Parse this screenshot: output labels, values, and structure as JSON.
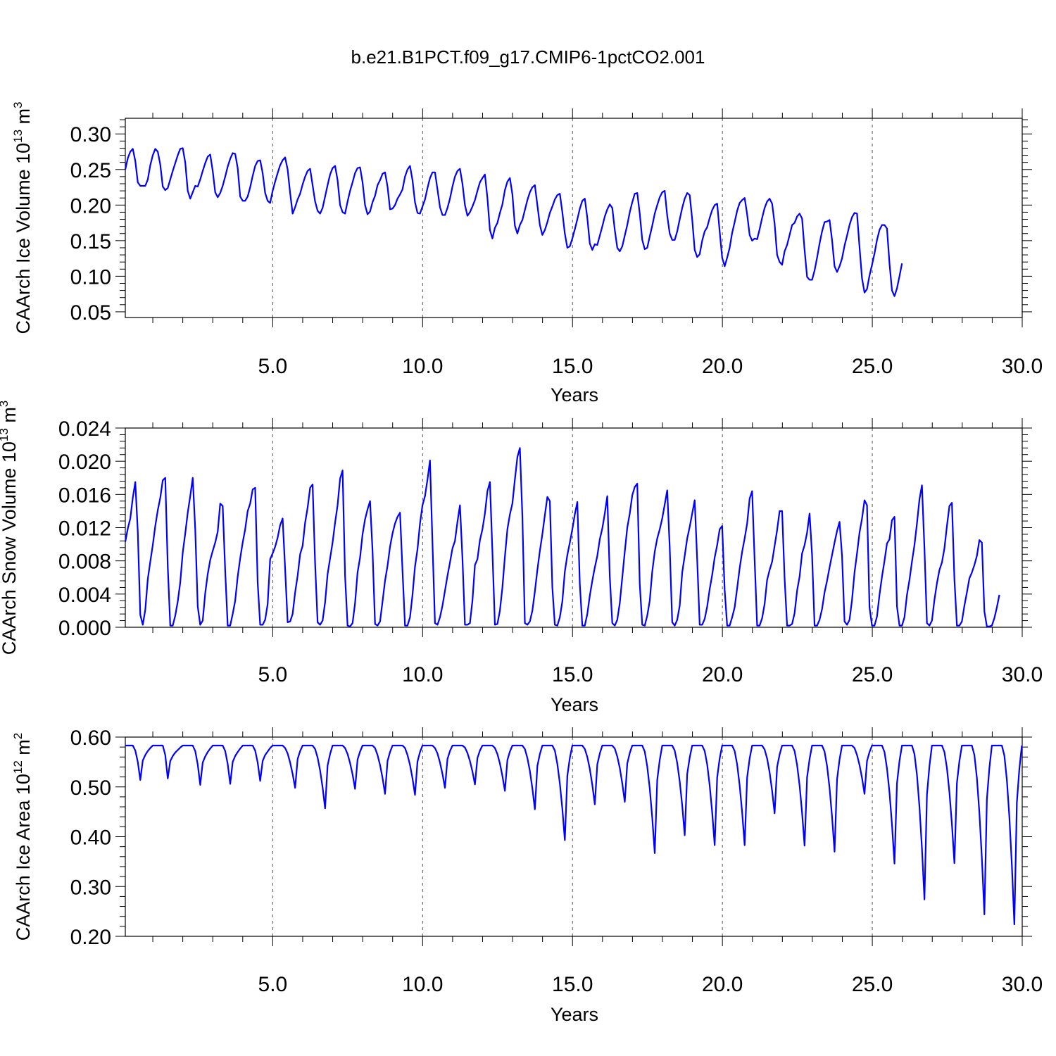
{
  "title": "b.e21.B1PCT.f09_g17.CMIP6-1pctCO2.001",
  "colors": {
    "line": "#0000ff",
    "axis": "#000000",
    "grid": "#555555"
  },
  "chart_data": [
    {
      "type": "line",
      "xlabel": "Years",
      "ylabel": {
        "prefix": "CAArch Ice Volume 10",
        "exp": "13",
        "unit_base": "m",
        "unit_exp": "3"
      },
      "xlim": [
        0.0833,
        30.0
      ],
      "ylim": [
        0.042,
        0.322
      ],
      "xticks": [
        5.0,
        10.0,
        15.0,
        20.0,
        25.0,
        30.0
      ],
      "xtick_labels": [
        "5.0",
        "10.0",
        "15.0",
        "20.0",
        "25.0",
        "30.0"
      ],
      "yticks": [
        0.05,
        0.1,
        0.15,
        0.2,
        0.25,
        0.3
      ],
      "ytick_labels": [
        "0.05",
        "0.10",
        "0.15",
        "0.20",
        "0.25",
        "0.30"
      ],
      "grid": "vertical dashed at major x ticks",
      "x_start": 0.0833,
      "x_step": 0.0833,
      "series": [
        {
          "values": [
            0.25,
            0.266,
            0.275,
            0.279,
            0.262,
            0.232,
            0.227,
            0.227,
            0.227,
            0.236,
            0.256,
            0.27,
            0.279,
            0.275,
            0.257,
            0.226,
            0.221,
            0.224,
            0.236,
            0.248,
            0.259,
            0.27,
            0.279,
            0.28,
            0.26,
            0.22,
            0.209,
            0.218,
            0.227,
            0.226,
            0.236,
            0.248,
            0.259,
            0.268,
            0.271,
            0.248,
            0.218,
            0.211,
            0.217,
            0.227,
            0.24,
            0.254,
            0.265,
            0.273,
            0.272,
            0.252,
            0.212,
            0.206,
            0.206,
            0.212,
            0.225,
            0.241,
            0.255,
            0.262,
            0.263,
            0.245,
            0.217,
            0.206,
            0.203,
            0.22,
            0.233,
            0.245,
            0.256,
            0.263,
            0.267,
            0.25,
            0.217,
            0.188,
            0.197,
            0.208,
            0.216,
            0.229,
            0.24,
            0.248,
            0.251,
            0.228,
            0.205,
            0.192,
            0.188,
            0.196,
            0.212,
            0.228,
            0.243,
            0.252,
            0.255,
            0.235,
            0.2,
            0.19,
            0.188,
            0.205,
            0.22,
            0.232,
            0.245,
            0.252,
            0.253,
            0.232,
            0.2,
            0.187,
            0.191,
            0.204,
            0.213,
            0.228,
            0.235,
            0.244,
            0.246,
            0.226,
            0.194,
            0.195,
            0.2,
            0.209,
            0.215,
            0.222,
            0.24,
            0.25,
            0.255,
            0.235,
            0.204,
            0.189,
            0.188,
            0.198,
            0.208,
            0.224,
            0.238,
            0.246,
            0.246,
            0.222,
            0.197,
            0.186,
            0.186,
            0.196,
            0.209,
            0.226,
            0.24,
            0.248,
            0.251,
            0.23,
            0.2,
            0.185,
            0.19,
            0.198,
            0.207,
            0.22,
            0.232,
            0.238,
            0.243,
            0.21,
            0.165,
            0.153,
            0.168,
            0.175,
            0.189,
            0.201,
            0.221,
            0.233,
            0.238,
            0.215,
            0.171,
            0.16,
            0.172,
            0.179,
            0.193,
            0.207,
            0.218,
            0.225,
            0.228,
            0.2,
            0.172,
            0.158,
            0.165,
            0.176,
            0.189,
            0.198,
            0.208,
            0.214,
            0.216,
            0.19,
            0.16,
            0.14,
            0.142,
            0.153,
            0.166,
            0.18,
            0.195,
            0.206,
            0.209,
            0.182,
            0.146,
            0.137,
            0.145,
            0.144,
            0.157,
            0.17,
            0.184,
            0.194,
            0.201,
            0.196,
            0.165,
            0.14,
            0.135,
            0.142,
            0.157,
            0.172,
            0.19,
            0.204,
            0.216,
            0.217,
            0.188,
            0.151,
            0.138,
            0.14,
            0.156,
            0.171,
            0.188,
            0.2,
            0.211,
            0.218,
            0.22,
            0.185,
            0.16,
            0.151,
            0.151,
            0.163,
            0.18,
            0.196,
            0.209,
            0.217,
            0.214,
            0.18,
            0.137,
            0.127,
            0.131,
            0.15,
            0.163,
            0.169,
            0.182,
            0.193,
            0.2,
            0.202,
            0.163,
            0.126,
            0.114,
            0.126,
            0.14,
            0.161,
            0.176,
            0.192,
            0.203,
            0.207,
            0.21,
            0.187,
            0.158,
            0.15,
            0.153,
            0.152,
            0.166,
            0.182,
            0.196,
            0.205,
            0.209,
            0.202,
            0.174,
            0.13,
            0.12,
            0.116,
            0.135,
            0.144,
            0.158,
            0.172,
            0.175,
            0.184,
            0.188,
            0.181,
            0.137,
            0.099,
            0.095,
            0.095,
            0.108,
            0.126,
            0.146,
            0.163,
            0.176,
            0.177,
            0.179,
            0.151,
            0.114,
            0.106,
            0.114,
            0.125,
            0.143,
            0.157,
            0.172,
            0.183,
            0.189,
            0.188,
            0.141,
            0.097,
            0.077,
            0.082,
            0.101,
            0.116,
            0.132,
            0.151,
            0.165,
            0.172,
            0.172,
            0.167,
            0.118,
            0.08,
            0.072,
            0.083,
            0.1,
            0.118
          ]
        }
      ]
    },
    {
      "type": "line",
      "xlabel": "Years",
      "ylabel": {
        "prefix": "CAArch Snow Volume 10",
        "exp": "13",
        "unit_base": "m",
        "unit_exp": "3"
      },
      "xlim": [
        0.0833,
        30.0
      ],
      "ylim": [
        0.0,
        0.024
      ],
      "xticks": [
        5.0,
        10.0,
        15.0,
        20.0,
        25.0,
        30.0
      ],
      "xtick_labels": [
        "5.0",
        "10.0",
        "15.0",
        "20.0",
        "25.0",
        "30.0"
      ],
      "yticks": [
        0.0,
        0.004,
        0.008,
        0.012,
        0.016,
        0.02,
        0.024
      ],
      "ytick_labels": [
        "0.000",
        "0.004",
        "0.008",
        "0.012",
        "0.016",
        "0.020",
        "0.024"
      ],
      "grid": "vertical dashed at major x ticks",
      "x_start": 0.0833,
      "x_step": 0.0833,
      "series": [
        {
          "values": [
            0.0103,
            0.0119,
            0.0131,
            0.0156,
            0.0175,
            0.0115,
            0.0015,
            0.0003,
            0.0021,
            0.0058,
            0.0079,
            0.0099,
            0.0122,
            0.0141,
            0.0156,
            0.0177,
            0.018,
            0.0073,
            0.0002,
            0.0002,
            0.0014,
            0.0031,
            0.0054,
            0.009,
            0.0113,
            0.0138,
            0.0158,
            0.018,
            0.0118,
            0.0025,
            0.0003,
            0.0008,
            0.0041,
            0.0064,
            0.0081,
            0.0092,
            0.0102,
            0.0115,
            0.0149,
            0.0146,
            0.0068,
            0.0002,
            0.0002,
            0.0016,
            0.0032,
            0.0061,
            0.0083,
            0.0102,
            0.0118,
            0.014,
            0.0149,
            0.0166,
            0.0168,
            0.0054,
            0.0003,
            0.0003,
            0.0009,
            0.0028,
            0.0082,
            0.0089,
            0.0097,
            0.0108,
            0.0123,
            0.0131,
            0.007,
            0.0006,
            0.0007,
            0.0016,
            0.0042,
            0.0062,
            0.0088,
            0.0098,
            0.0126,
            0.0144,
            0.0168,
            0.0172,
            0.0077,
            0.0006,
            0.0003,
            0.0008,
            0.003,
            0.0064,
            0.0083,
            0.0102,
            0.0126,
            0.0147,
            0.0179,
            0.0189,
            0.0062,
            0.0002,
            0.0001,
            0.0005,
            0.0029,
            0.0066,
            0.0084,
            0.0112,
            0.013,
            0.0142,
            0.0152,
            0.0092,
            0.0004,
            0.0002,
            0.0007,
            0.0031,
            0.0056,
            0.0074,
            0.0097,
            0.0113,
            0.0125,
            0.0133,
            0.0138,
            0.0068,
            0.0002,
            0.0002,
            0.0012,
            0.0039,
            0.0073,
            0.0094,
            0.0125,
            0.0147,
            0.0158,
            0.0178,
            0.0201,
            0.0101,
            0.0005,
            0.0003,
            0.0012,
            0.0026,
            0.0044,
            0.0062,
            0.0078,
            0.0095,
            0.0104,
            0.0127,
            0.0147,
            0.0083,
            0.0003,
            0.0003,
            0.0005,
            0.0032,
            0.0075,
            0.0082,
            0.0105,
            0.0118,
            0.0137,
            0.0164,
            0.0175,
            0.0091,
            0.0003,
            0.0004,
            0.002,
            0.0048,
            0.0085,
            0.0118,
            0.0136,
            0.0149,
            0.0178,
            0.0205,
            0.0216,
            0.0134,
            0.0005,
            0.0003,
            0.0007,
            0.002,
            0.0043,
            0.0069,
            0.0092,
            0.0112,
            0.0135,
            0.0157,
            0.0152,
            0.0048,
            0.0003,
            0.0002,
            0.0012,
            0.0031,
            0.0067,
            0.0087,
            0.0102,
            0.0118,
            0.0136,
            0.0151,
            0.0052,
            0.0002,
            0.0002,
            0.0016,
            0.0038,
            0.0056,
            0.0072,
            0.0086,
            0.0106,
            0.0119,
            0.0137,
            0.0158,
            0.0061,
            0.0005,
            0.0002,
            0.0009,
            0.0029,
            0.006,
            0.0091,
            0.012,
            0.0137,
            0.0159,
            0.0169,
            0.0173,
            0.0052,
            0.0003,
            0.0002,
            0.0014,
            0.0032,
            0.0067,
            0.0091,
            0.0107,
            0.0118,
            0.0131,
            0.0148,
            0.0165,
            0.0096,
            0.0006,
            0.0002,
            0.0009,
            0.0026,
            0.0066,
            0.0086,
            0.0107,
            0.0121,
            0.0137,
            0.0153,
            0.0081,
            0.0003,
            0.0003,
            0.001,
            0.0025,
            0.0046,
            0.0063,
            0.0084,
            0.0099,
            0.0118,
            0.0122,
            0.0045,
            0.0002,
            0.0002,
            0.0012,
            0.0024,
            0.0047,
            0.0071,
            0.0091,
            0.0107,
            0.0125,
            0.0155,
            0.0164,
            0.0081,
            0.0002,
            0.0002,
            0.0011,
            0.0028,
            0.0057,
            0.0069,
            0.0079,
            0.0098,
            0.0117,
            0.014,
            0.014,
            0.0059,
            0.0002,
            0.0002,
            0.0004,
            0.0017,
            0.0044,
            0.0061,
            0.0089,
            0.0099,
            0.0114,
            0.0137,
            0.0087,
            0.0002,
            0.0002,
            0.0009,
            0.0022,
            0.0042,
            0.0056,
            0.0072,
            0.0087,
            0.0102,
            0.0116,
            0.0127,
            0.0086,
            0.0007,
            0.0003,
            0.0009,
            0.0033,
            0.0066,
            0.0089,
            0.0114,
            0.0131,
            0.0153,
            0.0147,
            0.0024,
            0.0002,
            0.0002,
            0.0013,
            0.0039,
            0.0061,
            0.008,
            0.0101,
            0.0106,
            0.0129,
            0.0133,
            0.0025,
            0.0002,
            0.0002,
            0.0012,
            0.0039,
            0.0057,
            0.0079,
            0.0099,
            0.0125,
            0.0154,
            0.0171,
            0.0095,
            0.0005,
            0.0002,
            0.0008,
            0.0033,
            0.0053,
            0.0069,
            0.0078,
            0.0095,
            0.0122,
            0.0146,
            0.015,
            0.0058,
            0.0002,
            0.0002,
            0.0007,
            0.0026,
            0.0042,
            0.0059,
            0.0066,
            0.0075,
            0.0086,
            0.0105,
            0.0102,
            0.0019,
            0.0001,
            0.0001,
            0.0002,
            0.0011,
            0.0024,
            0.0039
          ]
        }
      ]
    },
    {
      "type": "line",
      "xlabel": "Years",
      "ylabel": {
        "prefix": "CAArch Ice Area 10",
        "exp": "12",
        "unit_base": "m",
        "unit_exp": "2"
      },
      "xlim": [
        0.0833,
        30.0
      ],
      "ylim": [
        0.2,
        0.6
      ],
      "xticks": [
        5.0,
        10.0,
        15.0,
        20.0,
        25.0,
        30.0
      ],
      "xtick_labels": [
        "5.0",
        "10.0",
        "15.0",
        "20.0",
        "25.0",
        "30.0"
      ],
      "yticks": [
        0.2,
        0.3,
        0.4,
        0.5,
        0.6
      ],
      "ytick_labels": [
        "0.20",
        "0.30",
        "0.40",
        "0.50",
        "0.60"
      ],
      "grid": "vertical dashed at major x ticks",
      "x_start": 0.0833,
      "x_step": 0.0833,
      "series": [
        {
          "years": [
            {
              "min": 0.514,
              "min_month": 6
            },
            {
              "min": 0.517,
              "min_month": 5
            },
            {
              "min": 0.504,
              "min_month": 6
            },
            {
              "min": 0.506,
              "min_month": 6
            },
            {
              "min": 0.512,
              "min_month": 6
            },
            {
              "min": 0.498,
              "min_month": 8
            },
            {
              "min": 0.457,
              "min_month": 8
            },
            {
              "min": 0.496,
              "min_month": 8
            },
            {
              "min": 0.486,
              "min_month": 8
            },
            {
              "min": 0.484,
              "min_month": 8
            },
            {
              "min": 0.498,
              "min_month": 8
            },
            {
              "min": 0.505,
              "min_month": 8
            },
            {
              "min": 0.492,
              "min_month": 8
            },
            {
              "min": 0.455,
              "min_month": 8
            },
            {
              "min": 0.393,
              "min_month": 8
            },
            {
              "min": 0.465,
              "min_month": 8
            },
            {
              "min": 0.47,
              "min_month": 8
            },
            {
              "min": 0.367,
              "min_month": 8
            },
            {
              "min": 0.403,
              "min_month": 8
            },
            {
              "min": 0.383,
              "min_month": 8
            },
            {
              "min": 0.383,
              "min_month": 8
            },
            {
              "min": 0.447,
              "min_month": 8
            },
            {
              "min": 0.382,
              "min_month": 8
            },
            {
              "min": 0.37,
              "min_month": 8
            },
            {
              "min": 0.486,
              "min_month": 8
            },
            {
              "min": 0.346,
              "min_month": 8
            },
            {
              "min": 0.274,
              "min_month": 8
            },
            {
              "min": 0.347,
              "min_month": 8
            },
            {
              "min": 0.244,
              "min_month": 8
            },
            {
              "min": 0.224,
              "min_month": 8
            }
          ],
          "max_value": 0.583
        }
      ]
    }
  ]
}
